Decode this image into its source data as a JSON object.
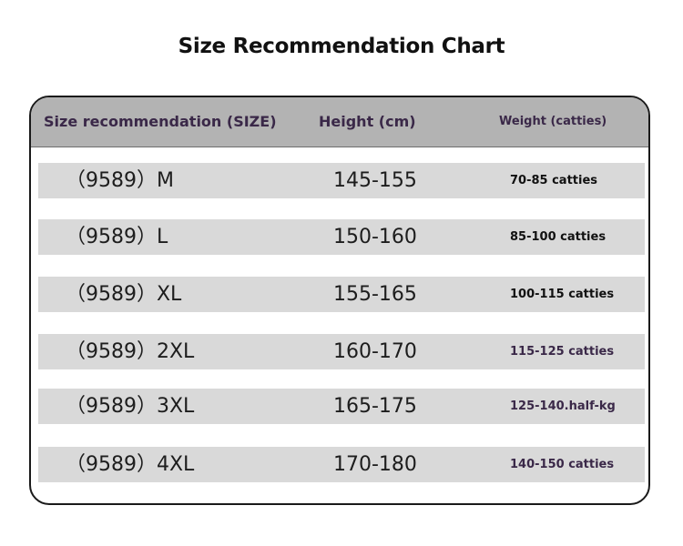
{
  "title": "Size Recommendation Chart",
  "table": {
    "headers": {
      "size": "Size recommendation (SIZE)",
      "height": "Height (cm)",
      "weight": "Weight (catties)"
    },
    "rows": [
      {
        "size": "（9589）M",
        "height": "145-155",
        "weight": "70-85 catties"
      },
      {
        "size": "（9589）L",
        "height": "150-160",
        "weight": "85-100 catties"
      },
      {
        "size": "（9589）XL",
        "height": "155-165",
        "weight": "100-115 catties"
      },
      {
        "size": "（9589）2XL",
        "height": "160-170",
        "weight": "115-125 catties"
      },
      {
        "size": "（9589）3XL",
        "height": "165-175",
        "weight": "125-140.half-kg"
      },
      {
        "size": "（9589）4XL",
        "height": "170-180",
        "weight": "140-150 catties"
      }
    ]
  },
  "colors": {
    "header_bg": "#b3b3b3",
    "row_bg": "#d9d9d9",
    "header_text": "#3a2848",
    "border": "#1a1a1a"
  }
}
